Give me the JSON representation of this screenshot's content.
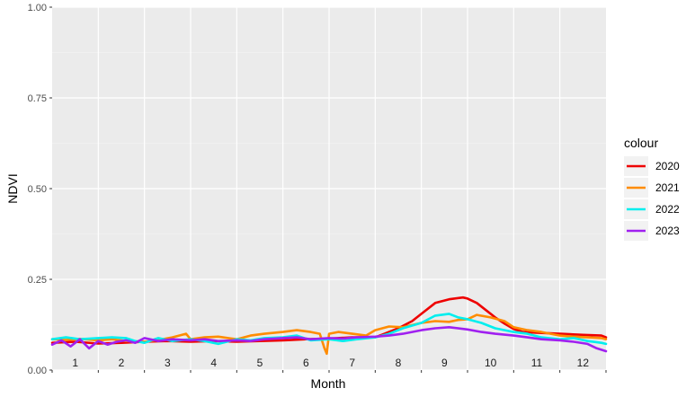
{
  "chart_data": {
    "type": "line",
    "xlabel": "Month",
    "ylabel": "NDVI",
    "xlim": [
      0,
      12
    ],
    "ylim": [
      0,
      1
    ],
    "y_ticks": [
      "0.00",
      "0.25",
      "0.50",
      "0.75",
      "1.00"
    ],
    "y_tick_values": [
      0,
      0.25,
      0.5,
      0.75,
      1.0
    ],
    "x_month_labels": [
      "1",
      "2",
      "3",
      "4",
      "5",
      "6",
      "7",
      "8",
      "9",
      "10",
      "11",
      "12"
    ],
    "grid": true,
    "legend": {
      "title": "colour",
      "position": "right"
    },
    "series": [
      {
        "name": "2020",
        "color": "#ee0000",
        "x": [
          0,
          0.5,
          1.0,
          1.5,
          2.0,
          2.5,
          3.0,
          3.5,
          4.0,
          4.5,
          5.0,
          5.5,
          6.0,
          6.5,
          7.0,
          7.2,
          7.5,
          7.8,
          8.0,
          8.3,
          8.6,
          8.9,
          9.0,
          9.2,
          9.4,
          9.6,
          9.8,
          10.0,
          10.2,
          10.5,
          11.0,
          11.5,
          11.9,
          12.0
        ],
        "y": [
          0.075,
          0.078,
          0.073,
          0.075,
          0.078,
          0.08,
          0.078,
          0.08,
          0.078,
          0.08,
          0.082,
          0.085,
          0.087,
          0.09,
          0.09,
          0.1,
          0.115,
          0.135,
          0.155,
          0.185,
          0.195,
          0.2,
          0.197,
          0.185,
          0.165,
          0.145,
          0.128,
          0.113,
          0.105,
          0.103,
          0.1,
          0.097,
          0.095,
          0.09
        ]
      },
      {
        "name": "2021",
        "color": "#ff8c00",
        "x": [
          0,
          0.3,
          0.6,
          1.0,
          1.3,
          1.6,
          2.0,
          2.3,
          2.6,
          2.9,
          3.0,
          3.3,
          3.6,
          4.0,
          4.3,
          4.6,
          5.0,
          5.3,
          5.6,
          5.8,
          5.9,
          5.95,
          6.0,
          6.2,
          6.5,
          6.8,
          7.0,
          7.3,
          7.6,
          8.0,
          8.3,
          8.6,
          8.8,
          9.0,
          9.2,
          9.5,
          9.8,
          10.0,
          10.3,
          10.6,
          11.0,
          11.3,
          11.6,
          11.9,
          12.0
        ],
        "y": [
          0.085,
          0.083,
          0.086,
          0.082,
          0.085,
          0.08,
          0.078,
          0.083,
          0.09,
          0.1,
          0.085,
          0.09,
          0.092,
          0.085,
          0.095,
          0.1,
          0.105,
          0.11,
          0.105,
          0.1,
          0.06,
          0.045,
          0.1,
          0.105,
          0.1,
          0.095,
          0.11,
          0.12,
          0.118,
          0.13,
          0.135,
          0.133,
          0.138,
          0.14,
          0.152,
          0.145,
          0.135,
          0.118,
          0.11,
          0.105,
          0.095,
          0.092,
          0.09,
          0.088,
          0.085
        ]
      },
      {
        "name": "2022",
        "color": "#00eeee",
        "x": [
          0,
          0.3,
          0.6,
          1.0,
          1.3,
          1.6,
          1.8,
          2.0,
          2.3,
          2.6,
          3.0,
          3.3,
          3.6,
          4.0,
          4.3,
          4.6,
          5.0,
          5.3,
          5.6,
          6.0,
          6.3,
          6.6,
          7.0,
          7.3,
          7.6,
          8.0,
          8.3,
          8.6,
          8.8,
          9.0,
          9.3,
          9.6,
          10.0,
          10.3,
          10.6,
          11.0,
          11.3,
          11.6,
          11.9,
          12.0
        ],
        "y": [
          0.085,
          0.09,
          0.085,
          0.088,
          0.09,
          0.088,
          0.08,
          0.075,
          0.088,
          0.08,
          0.085,
          0.08,
          0.072,
          0.085,
          0.082,
          0.088,
          0.09,
          0.095,
          0.082,
          0.085,
          0.08,
          0.085,
          0.09,
          0.1,
          0.115,
          0.13,
          0.15,
          0.155,
          0.145,
          0.14,
          0.13,
          0.115,
          0.105,
          0.1,
          0.09,
          0.085,
          0.088,
          0.08,
          0.075,
          0.072
        ]
      },
      {
        "name": "2023",
        "color": "#a020f0",
        "x": [
          0,
          0.2,
          0.4,
          0.6,
          0.8,
          1.0,
          1.2,
          1.4,
          1.6,
          1.8,
          2.0,
          2.3,
          2.6,
          3.0,
          3.3,
          3.6,
          4.0,
          4.3,
          4.6,
          5.0,
          5.3,
          5.6,
          6.0,
          6.3,
          6.6,
          7.0,
          7.3,
          7.6,
          8.0,
          8.3,
          8.6,
          9.0,
          9.3,
          9.6,
          10.0,
          10.3,
          10.6,
          11.0,
          11.3,
          11.6,
          11.8,
          12.0
        ],
        "y": [
          0.07,
          0.082,
          0.065,
          0.085,
          0.06,
          0.08,
          0.07,
          0.078,
          0.082,
          0.075,
          0.088,
          0.08,
          0.085,
          0.082,
          0.085,
          0.08,
          0.082,
          0.08,
          0.085,
          0.088,
          0.09,
          0.085,
          0.088,
          0.087,
          0.09,
          0.092,
          0.095,
          0.1,
          0.11,
          0.115,
          0.118,
          0.112,
          0.105,
          0.1,
          0.095,
          0.09,
          0.085,
          0.082,
          0.078,
          0.072,
          0.06,
          0.052
        ]
      }
    ]
  }
}
